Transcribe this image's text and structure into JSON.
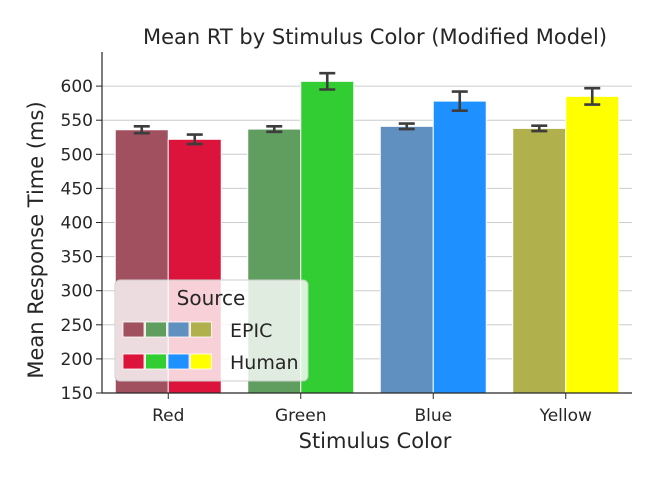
{
  "chart_data": {
    "type": "bar",
    "title": "Mean RT by Stimulus Color (Modified Model)",
    "xlabel": "Stimulus Color",
    "ylabel": "Mean Response Time (ms)",
    "categories": [
      "Red",
      "Green",
      "Blue",
      "Yellow"
    ],
    "ylim": [
      150,
      650
    ],
    "yticks": [
      150,
      200,
      250,
      300,
      350,
      400,
      450,
      500,
      550,
      600
    ],
    "grid": true,
    "legend": {
      "title": "Source",
      "placement": "lower-left",
      "entries": [
        "EPIC",
        "Human"
      ]
    },
    "series": [
      {
        "name": "EPIC",
        "values": [
          536,
          537,
          541,
          538
        ],
        "errors": [
          5,
          4,
          4,
          4
        ],
        "colors": [
          "#a0505f",
          "#5f9e5f",
          "#6090bf",
          "#b0b04c"
        ]
      },
      {
        "name": "Human",
        "values": [
          522,
          607,
          578,
          585
        ],
        "errors": [
          7,
          12,
          14,
          12
        ],
        "colors": [
          "#dc143c",
          "#32cd32",
          "#1e90ff",
          "#ffff00"
        ]
      }
    ]
  }
}
